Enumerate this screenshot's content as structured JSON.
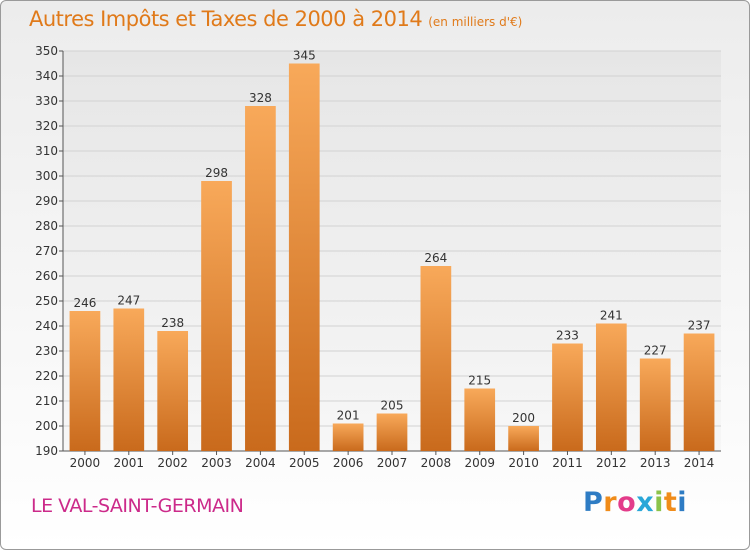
{
  "title": "Autres Impôts et Taxes de 2000 à 2014",
  "subtitle": "(en milliers d'€)",
  "commune": "LE VAL-SAINT-GERMAIN",
  "logo": {
    "text": "Proxiti",
    "letters": [
      "P",
      "r",
      "o",
      "x",
      "i",
      "t",
      "i"
    ],
    "colors": [
      "#2e7cc4",
      "#f08c1a",
      "#e33c8a",
      "#29a7d8",
      "#8bc34a",
      "#f08c1a",
      "#2e7cc4"
    ]
  },
  "colors": {
    "title": "#e07a1a",
    "commune": "#cc2a8a",
    "bar_top": "#f8a95a",
    "bar_bottom": "#c96a1c"
  },
  "chart_data": {
    "type": "bar",
    "categories": [
      "2000",
      "2001",
      "2002",
      "2003",
      "2004",
      "2005",
      "2006",
      "2007",
      "2008",
      "2009",
      "2010",
      "2011",
      "2012",
      "2013",
      "2014"
    ],
    "values": [
      246,
      247,
      238,
      298,
      328,
      345,
      201,
      205,
      264,
      215,
      200,
      233,
      241,
      227,
      237
    ],
    "title": "Autres Impôts et Taxes de 2000 à 2014",
    "xlabel": "",
    "ylabel": "",
    "ylim": [
      190,
      350
    ],
    "ytick_step": 10,
    "grid": true,
    "data_labels": true
  }
}
